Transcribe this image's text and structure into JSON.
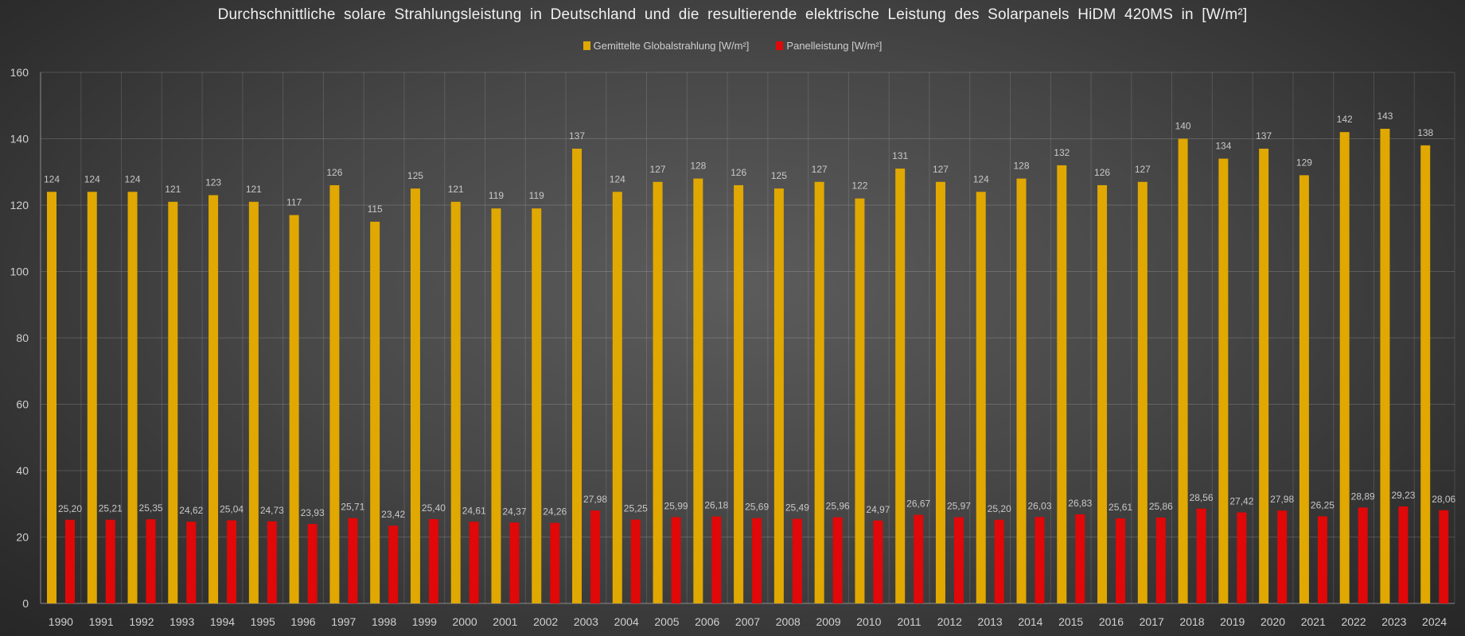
{
  "chart_data": {
    "type": "bar",
    "title": "Durchschnittliche solare Strahlungsleistung in Deutschland und die resultierende elektrische Leistung des Solarpanels HiDM 420MS in [W/m²]",
    "xlabel": "",
    "ylabel": "",
    "ylim": [
      0,
      160
    ],
    "yticks": [
      "0",
      "20",
      "40",
      "60",
      "80",
      "100",
      "120",
      "140",
      "160"
    ],
    "grid": true,
    "legend_position": "top-center",
    "categories": [
      "1990",
      "1991",
      "1992",
      "1993",
      "1994",
      "1995",
      "1996",
      "1997",
      "1998",
      "1999",
      "2000",
      "2001",
      "2002",
      "2003",
      "2004",
      "2005",
      "2006",
      "2007",
      "2008",
      "2009",
      "2010",
      "2011",
      "2012",
      "2013",
      "2014",
      "2015",
      "2016",
      "2017",
      "2018",
      "2019",
      "2020",
      "2021",
      "2022",
      "2023",
      "2024"
    ],
    "series": [
      {
        "name": "Gemittelte Globalstrahlung [W/m²]",
        "color": "#e0a800",
        "values": [
          124,
          124,
          124,
          121,
          123,
          121,
          117,
          126,
          115,
          125,
          121,
          119,
          119,
          137,
          124,
          127,
          128,
          126,
          125,
          127,
          122,
          131,
          127,
          124,
          128,
          132,
          126,
          127,
          140,
          134,
          137,
          129,
          142,
          143,
          138
        ],
        "labels": [
          "124",
          "124",
          "124",
          "121",
          "123",
          "121",
          "117",
          "126",
          "115",
          "125",
          "121",
          "119",
          "119",
          "137",
          "124",
          "127",
          "128",
          "126",
          "125",
          "127",
          "122",
          "131",
          "127",
          "124",
          "128",
          "132",
          "126",
          "127",
          "140",
          "134",
          "137",
          "129",
          "142",
          "143",
          "138"
        ]
      },
      {
        "name": "Panelleistung [W/m²]",
        "color": "#e00808",
        "values": [
          25.2,
          25.21,
          25.35,
          24.62,
          25.04,
          24.73,
          23.93,
          25.71,
          23.42,
          25.4,
          24.61,
          24.37,
          24.26,
          27.98,
          25.25,
          25.99,
          26.18,
          25.69,
          25.49,
          25.96,
          24.97,
          26.67,
          25.97,
          25.2,
          26.03,
          26.83,
          25.61,
          25.86,
          28.56,
          27.42,
          27.98,
          26.25,
          28.89,
          29.23,
          28.06
        ],
        "labels": [
          "25,20",
          "25,21",
          "25,35",
          "24,62",
          "25,04",
          "24,73",
          "23,93",
          "25,71",
          "23,42",
          "25,40",
          "24,61",
          "24,37",
          "24,26",
          "27,98",
          "25,25",
          "25,99",
          "26,18",
          "25,69",
          "25,49",
          "25,96",
          "24,97",
          "26,67",
          "25,97",
          "25,20",
          "26,03",
          "26,83",
          "25,61",
          "25,86",
          "28,56",
          "27,42",
          "27,98",
          "26,25",
          "28,89",
          "29,23",
          "28,06"
        ]
      }
    ]
  }
}
